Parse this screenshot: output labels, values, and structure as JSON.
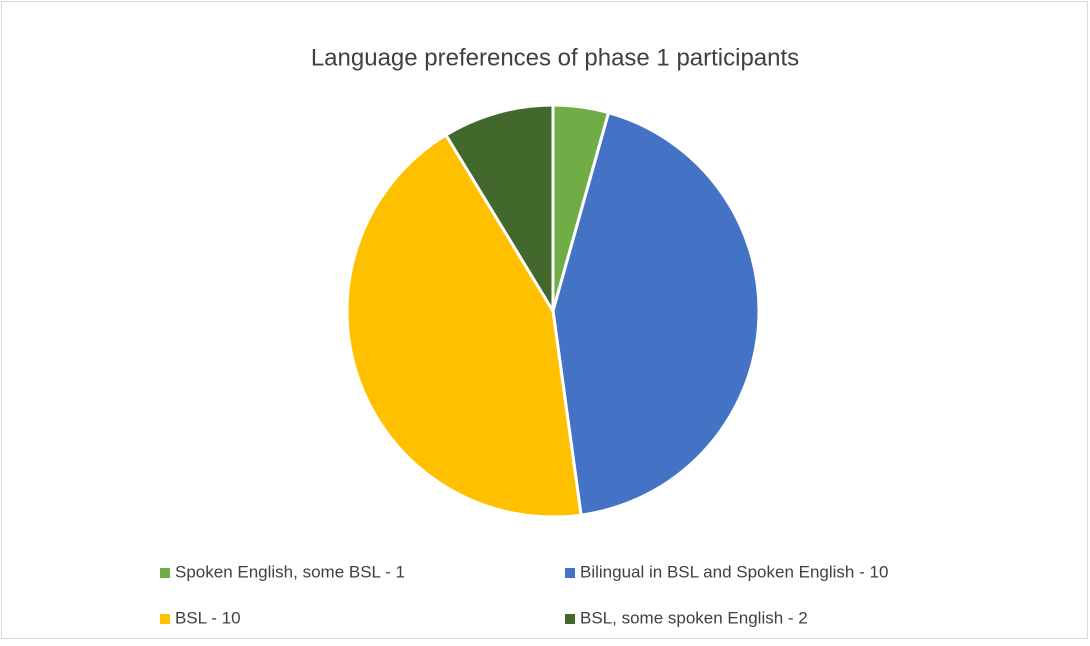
{
  "chart_data": {
    "type": "pie",
    "title": "Language preferences of phase 1 participants",
    "categories": [
      "Spoken English, some BSL - 1",
      "Bilingual in BSL and Spoken English - 10",
      "BSL - 10",
      "BSL, some spoken English - 2"
    ],
    "values": [
      1,
      10,
      10,
      2
    ],
    "colors": [
      "#70ad47",
      "#4472c4",
      "#ffc000",
      "#43682b"
    ],
    "legend": "bottom"
  }
}
